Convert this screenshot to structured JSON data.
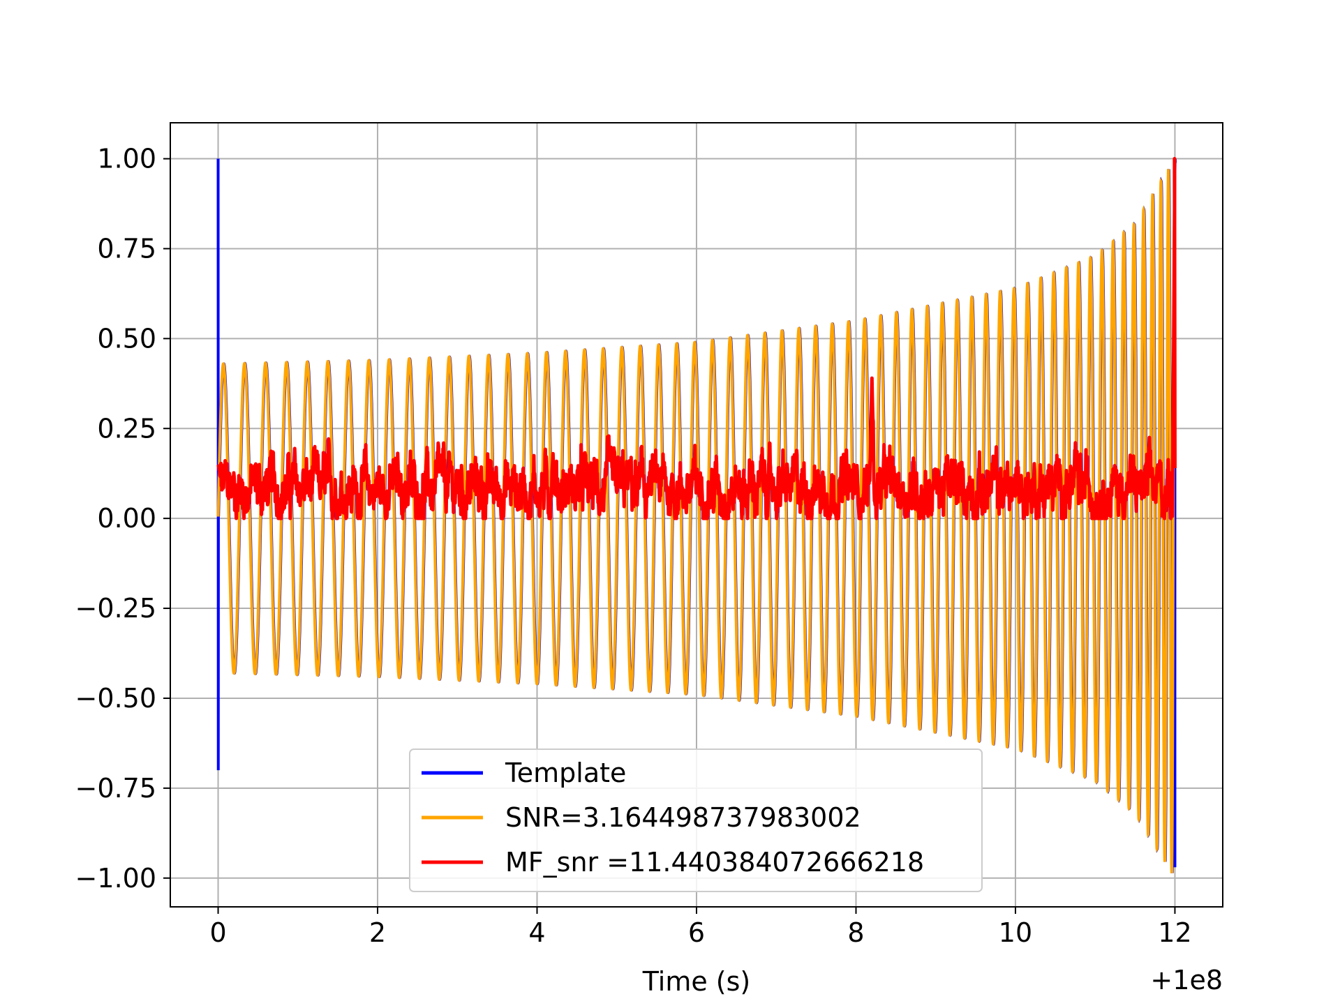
{
  "chart_data": {
    "type": "line",
    "title": "",
    "xlabel": "Time (s)",
    "ylabel": "",
    "x_offset_label": "+1e8",
    "xlim": [
      -0.6,
      12.6
    ],
    "ylim": [
      -1.08,
      1.1
    ],
    "xticks": [
      0,
      2,
      4,
      6,
      8,
      10,
      12
    ],
    "xtick_labels": [
      "0",
      "2",
      "4",
      "6",
      "8",
      "10",
      "12"
    ],
    "yticks": [
      1.0,
      0.75,
      0.5,
      0.25,
      0.0,
      -0.25,
      -0.5,
      -0.75,
      -1.0
    ],
    "ytick_labels": [
      "1.00",
      "0.75",
      "0.50",
      "0.25",
      "0.00",
      "−0.25",
      "−0.50",
      "−0.75",
      "−1.00"
    ],
    "grid": true,
    "legend_position": "bottom-center",
    "legend": [
      "Template",
      "SNR=3.164498737983002",
      "MF_snr =11.440384072666218"
    ],
    "series": [
      {
        "name": "Template",
        "color": "#0000ff",
        "description_points": {
          "x": [
            0.0,
            0.0,
            0.01,
            0.01,
            0.15,
            12.0,
            12.0
          ],
          "y": [
            1.0,
            -0.7,
            0.23,
            -0.43,
            0.43,
            1.0,
            -0.97
          ]
        },
        "envelope": {
          "x": [
            0.1,
            2,
            4,
            6,
            8,
            10,
            11,
            11.5,
            12.0
          ],
          "amp": [
            0.43,
            0.44,
            0.46,
            0.49,
            0.55,
            0.64,
            0.73,
            0.82,
            1.0
          ]
        }
      },
      {
        "name": "SNR=3.164498737983002",
        "color": "#ffa500",
        "envelope": {
          "x": [
            0.1,
            2,
            4,
            6,
            8,
            10,
            11,
            11.5,
            12.0
          ],
          "amp": [
            0.43,
            0.44,
            0.46,
            0.49,
            0.55,
            0.64,
            0.73,
            0.82,
            1.0
          ]
        },
        "range_x": [
          0.0,
          12.0
        ]
      },
      {
        "name": "MF_snr =11.440384072666218",
        "color": "#ff0000",
        "range_x": [
          0.0,
          12.0
        ],
        "typical_range": [
          0.0,
          0.25
        ],
        "peaks": {
          "x": [
            0.0,
            4.2,
            8.2,
            12.0
          ],
          "y": [
            0.15,
            0.18,
            0.39,
            1.0
          ]
        }
      }
    ]
  }
}
